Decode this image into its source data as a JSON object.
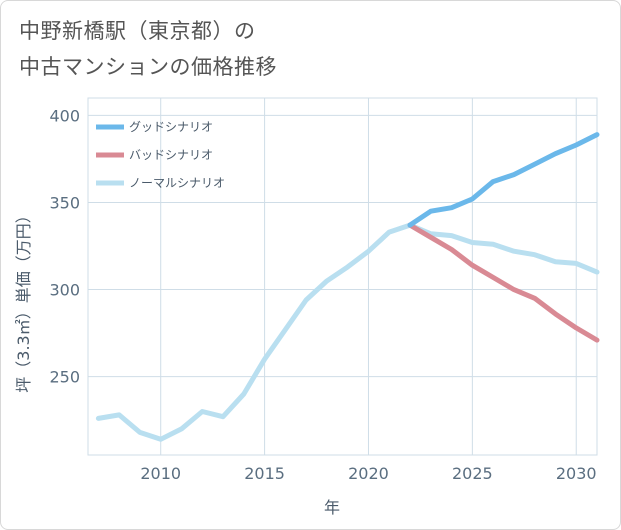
{
  "title": {
    "line1": "中野新橋駅（東京都）の",
    "line2": "中古マンションの価格推移"
  },
  "chart_data": {
    "type": "line",
    "xlabel": "年",
    "ylabel": "坪（3.3㎡）単価（万円）",
    "xlim": [
      2006.5,
      2031
    ],
    "ylim": [
      205,
      410
    ],
    "xticks": [
      2010,
      2015,
      2020,
      2025,
      2030
    ],
    "yticks": [
      250,
      300,
      350,
      400
    ],
    "grid": true,
    "legend_position": "top-left",
    "series": [
      {
        "name": "グッドシナリオ",
        "color": "#6bb8ea",
        "width": 5,
        "x": [
          2022,
          2023,
          2024,
          2025,
          2026,
          2027,
          2028,
          2029,
          2030,
          2031
        ],
        "y": [
          337,
          345,
          347,
          352,
          362,
          366,
          372,
          378,
          383,
          389
        ]
      },
      {
        "name": "バッドシナリオ",
        "color": "#d98a94",
        "width": 5,
        "x": [
          2022,
          2023,
          2024,
          2025,
          2026,
          2027,
          2028,
          2029,
          2030,
          2031
        ],
        "y": [
          337,
          330,
          323,
          314,
          307,
          300,
          295,
          286,
          278,
          271
        ]
      },
      {
        "name": "ノーマルシナリオ",
        "color": "#b9dff0",
        "width": 5,
        "x": [
          2007,
          2008,
          2009,
          2010,
          2011,
          2012,
          2013,
          2014,
          2015,
          2016,
          2017,
          2018,
          2019,
          2020,
          2021,
          2022,
          2023,
          2024,
          2025,
          2026,
          2027,
          2028,
          2029,
          2030,
          2031
        ],
        "y": [
          226,
          228,
          218,
          214,
          220,
          230,
          227,
          240,
          260,
          277,
          294,
          305,
          313,
          322,
          333,
          337,
          332,
          331,
          327,
          326,
          322,
          320,
          316,
          315,
          310
        ]
      }
    ]
  }
}
